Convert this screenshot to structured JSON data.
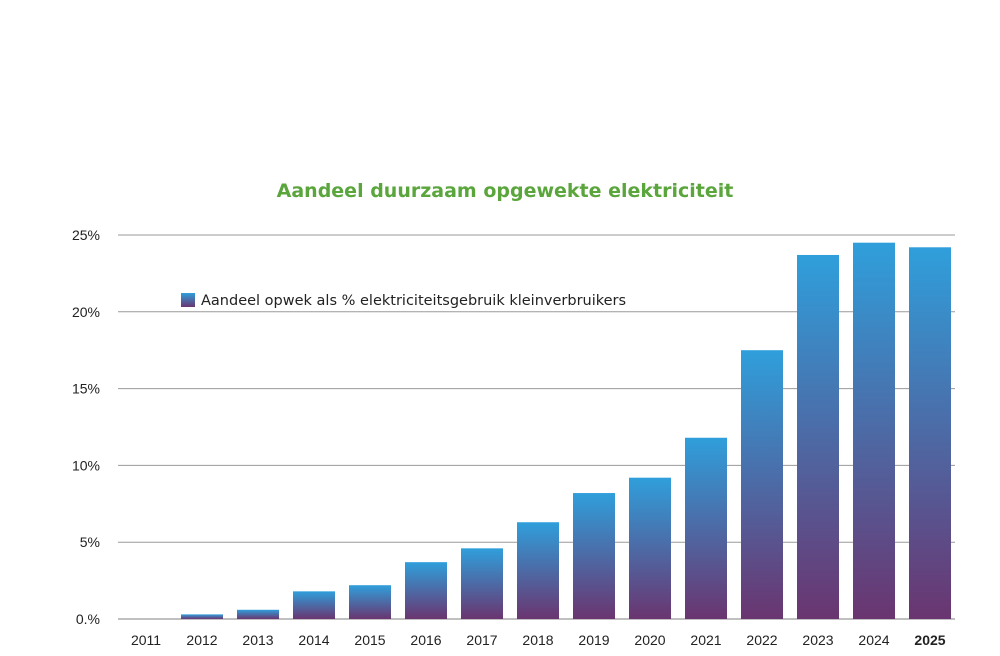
{
  "chart_data": {
    "type": "bar",
    "title": "Aandeel duurzaam opgewekte elektriciteit",
    "categories": [
      "2011",
      "2012",
      "2013",
      "2014",
      "2015",
      "2016",
      "2017",
      "2018",
      "2019",
      "2020",
      "2021",
      "2022",
      "2023",
      "2024",
      "2025"
    ],
    "series": [
      {
        "name": "Aandeel opwek als % elektriciteitsgebruik kleinverbruikers",
        "values": [
          0.0,
          0.3,
          0.6,
          1.8,
          2.2,
          3.7,
          4.6,
          6.3,
          8.2,
          9.2,
          11.8,
          17.5,
          23.7,
          24.5,
          24.2
        ]
      }
    ],
    "yticks": [
      "0.%",
      "5%",
      "10%",
      "15%",
      "20%",
      "25%"
    ],
    "ytick_values": [
      0,
      5,
      10,
      15,
      20,
      25
    ],
    "ylim": [
      0,
      25
    ],
    "xlabel": "",
    "ylabel": "",
    "grid": true,
    "legend_position": "top-left",
    "highlighted_category": "2025",
    "colors": {
      "title": "#5aa63c",
      "bar_top": "#2f9fdb",
      "bar_bottom": "#6a3570",
      "grid": "#9a9a9a"
    }
  }
}
